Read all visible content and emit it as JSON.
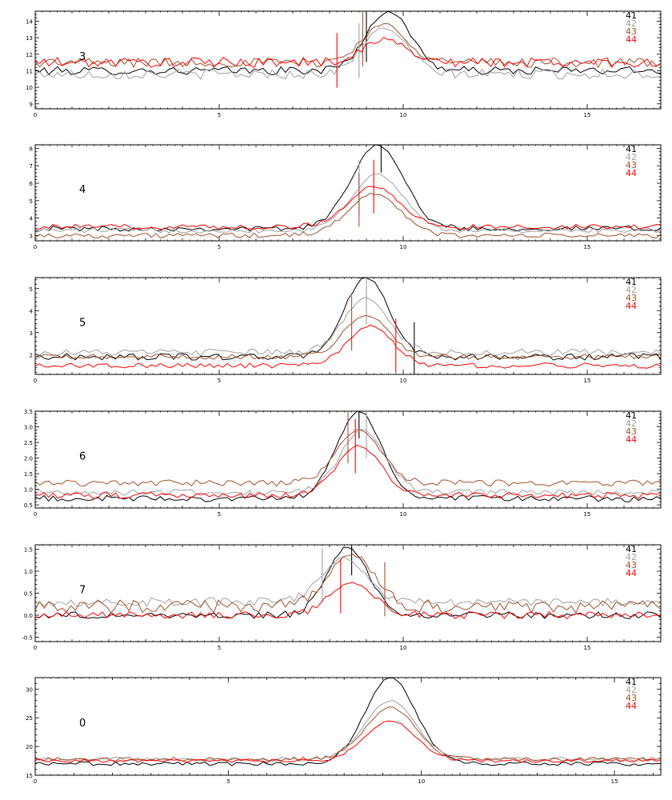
{
  "chart_data": [
    {
      "type": "line",
      "panel_label": "3",
      "xlim": [
        0,
        17
      ],
      "ylim": [
        8.7,
        14.6
      ],
      "xticks": [
        0,
        5,
        10,
        15
      ],
      "yticks": [
        9,
        10,
        11,
        12,
        13,
        14
      ],
      "legend": [
        "41",
        "42",
        "43",
        "44"
      ],
      "series": [
        {
          "name": "41",
          "color": "#000000",
          "baseline": 11.0,
          "peak": 14.6,
          "center": 9.6,
          "width": 0.6,
          "noise": 0.25,
          "marker": 9.0
        },
        {
          "name": "42",
          "color": "#a0a0a0",
          "baseline": 10.8,
          "peak": 13.6,
          "center": 9.5,
          "width": 0.6,
          "noise": 0.3,
          "marker": 8.8
        },
        {
          "name": "43",
          "color": "#a0522d",
          "baseline": 11.5,
          "peak": 13.8,
          "center": 9.5,
          "width": 0.6,
          "noise": 0.3,
          "marker": 8.9
        },
        {
          "name": "44",
          "color": "#ff0000",
          "baseline": 11.5,
          "peak": 12.9,
          "center": 9.5,
          "width": 0.6,
          "noise": 0.3,
          "marker": 8.2
        }
      ]
    },
    {
      "type": "line",
      "panel_label": "4",
      "xlim": [
        0,
        17
      ],
      "ylim": [
        2.7,
        8.2
      ],
      "xticks": [
        0,
        5,
        10,
        15
      ],
      "yticks": [
        3,
        4,
        5,
        6,
        7,
        8
      ],
      "legend": [
        "41",
        "42",
        "43",
        "44"
      ],
      "series": [
        {
          "name": "41",
          "color": "#000000",
          "baseline": 3.4,
          "peak": 8.2,
          "center": 9.3,
          "width": 0.7,
          "noise": 0.15,
          "marker": 9.4
        },
        {
          "name": "42",
          "color": "#a0a0a0",
          "baseline": 3.3,
          "peak": 6.5,
          "center": 9.3,
          "width": 0.7,
          "noise": 0.15,
          "marker": 8.8
        },
        {
          "name": "43",
          "color": "#a0522d",
          "baseline": 3.0,
          "peak": 5.4,
          "center": 9.2,
          "width": 0.7,
          "noise": 0.15,
          "marker": 8.8
        },
        {
          "name": "44",
          "color": "#ff0000",
          "baseline": 3.5,
          "peak": 5.8,
          "center": 9.2,
          "width": 0.7,
          "noise": 0.15,
          "marker": 9.2
        }
      ]
    },
    {
      "type": "line",
      "panel_label": "5",
      "xlim": [
        0,
        17
      ],
      "ylim": [
        1.1,
        5.5
      ],
      "xticks": [
        0,
        5,
        10,
        15
      ],
      "yticks": [
        2,
        3,
        4,
        5
      ],
      "legend": [
        "41",
        "42",
        "43",
        "44"
      ],
      "series": [
        {
          "name": "41",
          "color": "#000000",
          "baseline": 1.9,
          "peak": 5.5,
          "center": 9.0,
          "width": 0.6,
          "noise": 0.15,
          "marker": 10.3
        },
        {
          "name": "42",
          "color": "#a0a0a0",
          "baseline": 2.1,
          "peak": 4.6,
          "center": 9.0,
          "width": 0.6,
          "noise": 0.15,
          "marker": 9.0
        },
        {
          "name": "43",
          "color": "#a0522d",
          "baseline": 1.9,
          "peak": 3.8,
          "center": 9.0,
          "width": 0.6,
          "noise": 0.12,
          "marker": 8.6
        },
        {
          "name": "44",
          "color": "#ff0000",
          "baseline": 1.5,
          "peak": 3.3,
          "center": 9.1,
          "width": 0.6,
          "noise": 0.12,
          "marker": 9.8
        }
      ]
    },
    {
      "type": "line",
      "panel_label": "6",
      "xlim": [
        0,
        17
      ],
      "ylim": [
        0.4,
        3.5
      ],
      "xticks": [
        0,
        5,
        10,
        15
      ],
      "yticks": [
        0.5,
        1.0,
        1.5,
        2.0,
        2.5,
        3.0,
        3.5
      ],
      "legend": [
        "41",
        "42",
        "43",
        "44"
      ],
      "series": [
        {
          "name": "41",
          "color": "#000000",
          "baseline": 0.7,
          "peak": 3.5,
          "center": 8.8,
          "width": 0.6,
          "noise": 0.1,
          "marker": 8.8
        },
        {
          "name": "42",
          "color": "#a0a0a0",
          "baseline": 0.9,
          "peak": 2.9,
          "center": 8.9,
          "width": 0.6,
          "noise": 0.1,
          "marker": 9.0
        },
        {
          "name": "43",
          "color": "#a0522d",
          "baseline": 1.2,
          "peak": 2.9,
          "center": 8.8,
          "width": 0.6,
          "noise": 0.1,
          "marker": 8.5
        },
        {
          "name": "44",
          "color": "#ff0000",
          "baseline": 0.8,
          "peak": 2.4,
          "center": 8.8,
          "width": 0.6,
          "noise": 0.1,
          "marker": 8.7
        }
      ]
    },
    {
      "type": "line",
      "panel_label": "7",
      "xlim": [
        0,
        17
      ],
      "ylim": [
        -0.6,
        1.6
      ],
      "xticks": [
        0,
        5,
        10,
        15
      ],
      "yticks": [
        -0.5,
        0.0,
        0.5,
        1.0,
        1.5
      ],
      "legend": [
        "41",
        "42",
        "43",
        "44"
      ],
      "series": [
        {
          "name": "41",
          "color": "#000000",
          "baseline": 0.0,
          "peak": 1.55,
          "center": 8.5,
          "width": 0.55,
          "noise": 0.08,
          "marker": 8.6
        },
        {
          "name": "42",
          "color": "#a0a0a0",
          "baseline": 0.3,
          "peak": 1.3,
          "center": 8.4,
          "width": 0.6,
          "noise": 0.1,
          "marker": 7.8
        },
        {
          "name": "43",
          "color": "#a0522d",
          "baseline": 0.2,
          "peak": 1.4,
          "center": 8.6,
          "width": 0.6,
          "noise": 0.15,
          "marker": 9.5
        },
        {
          "name": "44",
          "color": "#ff0000",
          "baseline": 0.0,
          "peak": 0.75,
          "center": 8.6,
          "width": 0.6,
          "noise": 0.08,
          "marker": 8.3
        }
      ]
    },
    {
      "type": "line",
      "panel_label": "0",
      "xlim": [
        0,
        16.2
      ],
      "ylim": [
        15,
        32
      ],
      "xticks": [
        0,
        5,
        10,
        15
      ],
      "yticks": [
        15,
        20,
        25,
        30
      ],
      "legend": [
        "41",
        "42",
        "43",
        "44"
      ],
      "series": [
        {
          "name": "41",
          "color": "#000000",
          "baseline": 17.0,
          "peak": 32.0,
          "center": 9.2,
          "width": 0.65,
          "noise": 0.35
        },
        {
          "name": "42",
          "color": "#a0a0a0",
          "baseline": 17.8,
          "peak": 28.0,
          "center": 9.2,
          "width": 0.65,
          "noise": 0.35
        },
        {
          "name": "43",
          "color": "#a0522d",
          "baseline": 17.8,
          "peak": 26.8,
          "center": 9.2,
          "width": 0.65,
          "noise": 0.35
        },
        {
          "name": "44",
          "color": "#ff0000",
          "baseline": 17.5,
          "peak": 24.5,
          "center": 9.2,
          "width": 0.65,
          "noise": 0.3
        }
      ]
    }
  ]
}
